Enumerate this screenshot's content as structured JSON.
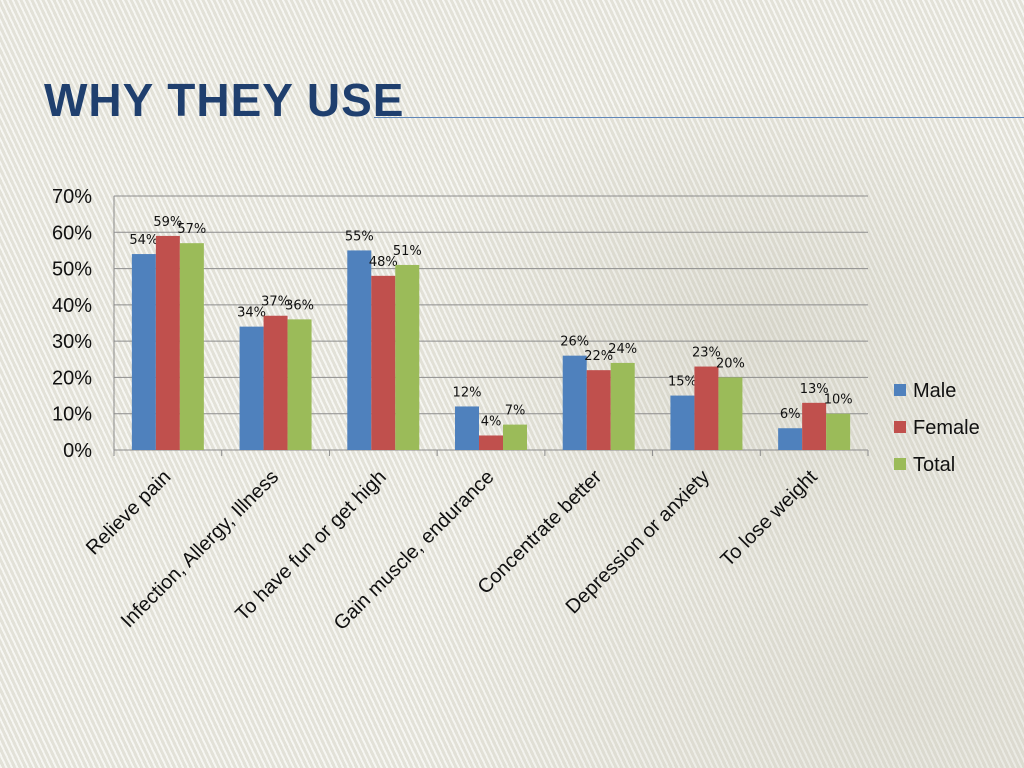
{
  "slide": {
    "title": "WHY THEY USE"
  },
  "colors": {
    "title": "#1f3f6e",
    "Male": "#4f81bd",
    "Female": "#c0504d",
    "Total": "#9bbb59",
    "grid": "#8c8c8c"
  },
  "chart_data": {
    "type": "bar",
    "title": "",
    "xlabel": "",
    "ylabel": "",
    "ylim": [
      0,
      70
    ],
    "yticks": [
      0,
      10,
      20,
      30,
      40,
      50,
      60,
      70
    ],
    "ytick_format": "percent",
    "grid": true,
    "legend": "right",
    "categories": [
      "Relieve pain",
      "Infection, Allergy, Illness",
      "To have fun or get high",
      "Gain muscle, endurance",
      "Concentrate better",
      "Depression or anxiety",
      "To lose weight"
    ],
    "series": [
      {
        "name": "Male",
        "values": [
          54,
          34,
          55,
          12,
          26,
          15,
          6
        ]
      },
      {
        "name": "Female",
        "values": [
          59,
          37,
          48,
          4,
          22,
          23,
          13
        ]
      },
      {
        "name": "Total",
        "values": [
          57,
          36,
          51,
          7,
          24,
          20,
          10
        ]
      }
    ],
    "data_labels": [
      [
        "54%",
        "34%",
        "55%",
        "12%",
        "26%",
        "15%",
        "6%"
      ],
      [
        "59%",
        "37%",
        "48%",
        "4%",
        "22%",
        "23%",
        "13%"
      ],
      [
        "57%",
        "36%",
        "51%",
        "7%",
        "24%",
        "20%",
        "10%"
      ]
    ],
    "ytick_labels": [
      "0%",
      "10%",
      "20%",
      "30%",
      "40%",
      "50%",
      "60%",
      "70%"
    ]
  }
}
